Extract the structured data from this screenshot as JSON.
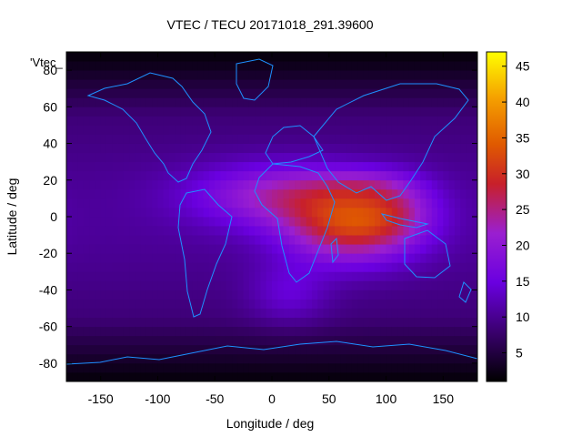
{
  "chart_data": {
    "type": "heatmap",
    "title": "VTEC / TECU 20171018_291.39600",
    "xlabel": "Longitude / deg",
    "ylabel": "Latitude / deg",
    "xlim": [
      -180,
      180
    ],
    "ylim": [
      -90,
      90
    ],
    "x_ticks": [
      -150,
      -100,
      -50,
      0,
      50,
      100,
      150
    ],
    "y_ticks": [
      -80,
      -60,
      -40,
      -20,
      0,
      20,
      40,
      60,
      80
    ],
    "key_label": "'Vtec_",
    "colorbar": {
      "range": [
        1,
        47
      ],
      "ticks": [
        5,
        10,
        15,
        20,
        25,
        30,
        35,
        40,
        45
      ],
      "palette": "black-purple-red-orange-yellow"
    },
    "features": [
      {
        "lon": 70,
        "lat": -5,
        "sx": 40,
        "sy": 14,
        "amp": 19
      },
      {
        "lon": 10,
        "lat": 12,
        "sx": 55,
        "sy": 12,
        "amp": 12
      },
      {
        "lon": 110,
        "lat": 5,
        "sx": 25,
        "sy": 12,
        "amp": 6
      },
      {
        "lon": 15,
        "lat": -42,
        "sx": 25,
        "sy": 12,
        "amp": 5
      },
      {
        "lon": 80,
        "lat": 18,
        "sx": 30,
        "sy": 6,
        "amp": 4
      }
    ],
    "background_level": 9,
    "polar_level": 3,
    "coastline_color": "#1e90ff"
  }
}
